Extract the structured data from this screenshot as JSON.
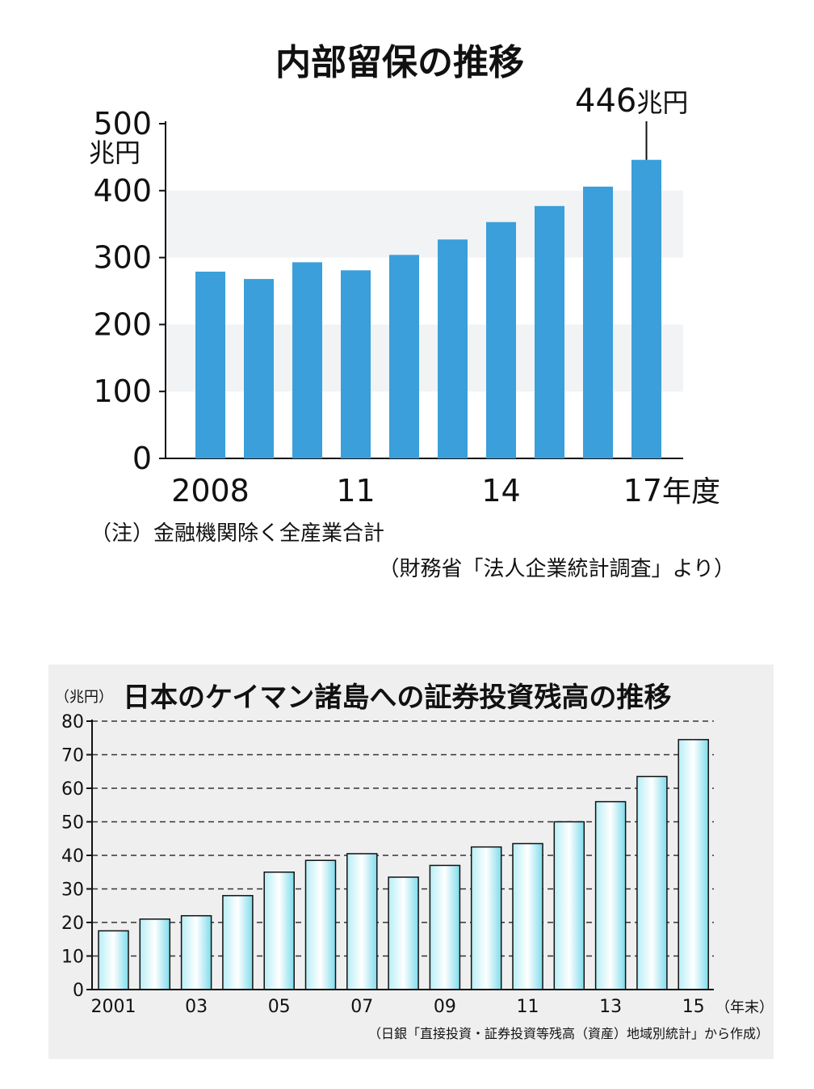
{
  "chart_data": [
    {
      "type": "bar",
      "title": "内部留保の推移",
      "ylabel": "兆円",
      "ylim": [
        0,
        500
      ],
      "yticks": [
        "0",
        "100",
        "200",
        "300",
        "400",
        "500"
      ],
      "categories": [
        "2008",
        "2009",
        "2010",
        "2011",
        "2012",
        "2013",
        "2014",
        "2015",
        "2016",
        "2017"
      ],
      "xtick_labels": [
        "2008",
        "11",
        "14",
        "17"
      ],
      "xunit": "年度",
      "values": [
        279,
        268,
        293,
        281,
        304,
        327,
        353,
        377,
        406,
        446
      ],
      "annotation": {
        "value": "446",
        "unit": "兆円"
      },
      "note": "（注）金融機関除く全産業合計",
      "source": "（財務省「法人企業統計調査」より）",
      "colors": {
        "bar": "#3a9fda",
        "band": "#f1f3f5"
      },
      "grid": "alternating bands"
    },
    {
      "type": "bar",
      "title": "日本のケイマン諸島への証券投資残高の推移",
      "ylabel": "（兆円）",
      "ylim": [
        0,
        80
      ],
      "yticks": [
        "0",
        "10",
        "20",
        "30",
        "40",
        "50",
        "60",
        "70",
        "80"
      ],
      "categories": [
        "2001",
        "2002",
        "2003",
        "2004",
        "2005",
        "2006",
        "2007",
        "2008",
        "2009",
        "2010",
        "2011",
        "2012",
        "2013",
        "2014",
        "2015"
      ],
      "xtick_labels": [
        "2001",
        "03",
        "05",
        "07",
        "09",
        "11",
        "13",
        "15"
      ],
      "xunit": "（年末）",
      "values": [
        17.5,
        21,
        22,
        28,
        35,
        38.5,
        40.5,
        33.5,
        37,
        42.5,
        43.5,
        50,
        56,
        63.5,
        74.5
      ],
      "source": "（日銀「直接投資・証券投資等残高（資産）地域別統計」から作成）",
      "colors": {
        "bar_top": "#ffffff",
        "bar_bottom": "#8ee2f0",
        "bar_stroke": "#111111",
        "background": "#efefef"
      },
      "grid": "dashed horizontal"
    }
  ]
}
